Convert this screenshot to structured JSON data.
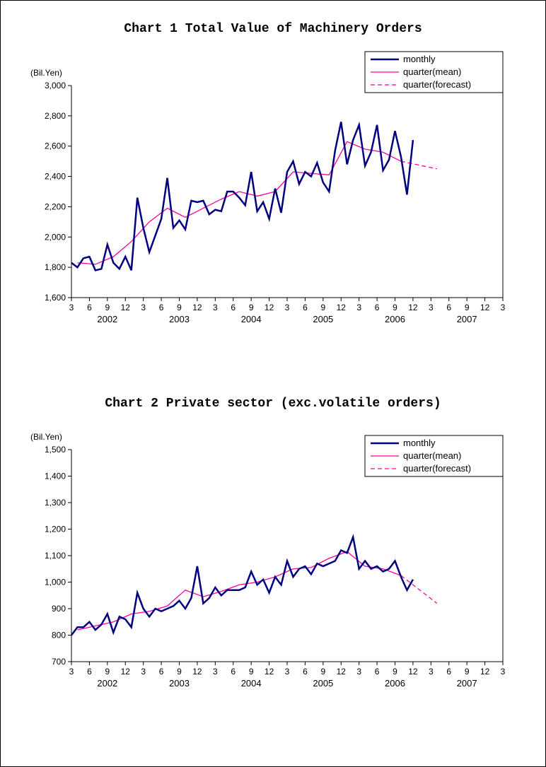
{
  "chart1": {
    "type": "line",
    "title": "Chart 1 Total Value of Machinery Orders",
    "yaxis_label": "(Bil.Yen)",
    "title_fontsize": 18,
    "label_fontsize": 12,
    "background_color": "#ffffff",
    "plot_border_color": "#000000",
    "grid_color": "#000000",
    "ylim": [
      1600,
      3000
    ],
    "yticks": [
      1600,
      1800,
      2000,
      2200,
      2400,
      2600,
      2800,
      3000
    ],
    "xticks_months": [
      "3",
      "6",
      "9",
      "12",
      "3",
      "6",
      "9",
      "12",
      "3",
      "6",
      "9",
      "12",
      "3",
      "6",
      "9",
      "12",
      "3",
      "6",
      "9",
      "12",
      "3",
      "6",
      "9",
      "12",
      "3"
    ],
    "xticks_years": [
      "2002",
      "2003",
      "2004",
      "2005",
      "2006",
      "2007"
    ],
    "series": {
      "monthly": {
        "label": "monthly",
        "color": "#000080",
        "line_width": 2.5,
        "dash": "none",
        "values": [
          1830,
          1800,
          1860,
          1870,
          1780,
          1790,
          1950,
          1830,
          1790,
          1870,
          1780,
          2260,
          2060,
          1900,
          2010,
          2120,
          2390,
          2060,
          2110,
          2050,
          2240,
          2230,
          2240,
          2150,
          2180,
          2170,
          2300,
          2300,
          2260,
          2210,
          2430,
          2170,
          2230,
          2120,
          2320,
          2160,
          2430,
          2500,
          2350,
          2430,
          2400,
          2490,
          2360,
          2300,
          2570,
          2760,
          2480,
          2640,
          2740,
          2470,
          2560,
          2740,
          2440,
          2510,
          2700,
          2530,
          2280,
          2640
        ]
      },
      "quarter_mean": {
        "label": "quarter(mean)",
        "color": "#ff00a0",
        "line_width": 1.3,
        "dash": "none",
        "values": [
          null,
          1830,
          null,
          null,
          1820,
          null,
          null,
          1870,
          null,
          null,
          1970,
          null,
          null,
          2100,
          null,
          null,
          2190,
          null,
          null,
          2130,
          null,
          null,
          2190,
          null,
          null,
          2250,
          null,
          null,
          2300,
          null,
          null,
          2270,
          null,
          null,
          2300,
          null,
          null,
          2430,
          null,
          null,
          2420,
          null,
          null,
          2410,
          null,
          null,
          2630,
          null,
          null,
          2580,
          null,
          null,
          2560,
          null,
          null,
          2500,
          null,
          null
        ]
      },
      "quarter_forecast": {
        "label": "quarter(forecast)",
        "color": "#ff00a0",
        "line_width": 1.3,
        "dash": "6,4",
        "values": [
          null,
          null,
          null,
          null,
          null,
          null,
          null,
          null,
          null,
          null,
          null,
          null,
          null,
          null,
          null,
          null,
          null,
          null,
          null,
          null,
          null,
          null,
          null,
          null,
          null,
          null,
          null,
          null,
          null,
          null,
          null,
          null,
          null,
          null,
          null,
          null,
          null,
          null,
          null,
          null,
          null,
          null,
          null,
          null,
          null,
          null,
          null,
          null,
          null,
          null,
          null,
          null,
          null,
          null,
          null,
          2500,
          null,
          null,
          2450
        ]
      }
    }
  },
  "chart2": {
    "type": "line",
    "title": "Chart 2 Private sector (exc.volatile orders)",
    "yaxis_label": "(Bil.Yen)",
    "title_fontsize": 18,
    "label_fontsize": 12,
    "background_color": "#ffffff",
    "plot_border_color": "#000000",
    "grid_color": "#000000",
    "ylim": [
      700,
      1500
    ],
    "yticks": [
      700,
      800,
      900,
      1000,
      1100,
      1200,
      1300,
      1400,
      1500
    ],
    "xticks_months": [
      "3",
      "6",
      "9",
      "12",
      "3",
      "6",
      "9",
      "12",
      "3",
      "6",
      "9",
      "12",
      "3",
      "6",
      "9",
      "12",
      "3",
      "6",
      "9",
      "12",
      "3",
      "6",
      "9",
      "12",
      "3"
    ],
    "xticks_years": [
      "2002",
      "2003",
      "2004",
      "2005",
      "2006",
      "2007"
    ],
    "series": {
      "monthly": {
        "label": "monthly",
        "color": "#000080",
        "line_width": 2.5,
        "dash": "none",
        "values": [
          800,
          830,
          830,
          850,
          820,
          840,
          880,
          810,
          870,
          860,
          830,
          960,
          900,
          870,
          900,
          890,
          900,
          910,
          930,
          900,
          940,
          1060,
          920,
          940,
          980,
          950,
          970,
          970,
          970,
          980,
          1040,
          990,
          1010,
          960,
          1020,
          990,
          1080,
          1020,
          1050,
          1060,
          1030,
          1070,
          1060,
          1070,
          1080,
          1120,
          1110,
          1170,
          1050,
          1080,
          1050,
          1060,
          1040,
          1050,
          1080,
          1020,
          970,
          1010
        ]
      },
      "quarter_mean": {
        "label": "quarter(mean)",
        "color": "#ff00a0",
        "line_width": 1.3,
        "dash": "none",
        "values": [
          null,
          820,
          null,
          null,
          835,
          null,
          null,
          850,
          null,
          null,
          880,
          null,
          null,
          890,
          null,
          null,
          910,
          null,
          null,
          970,
          null,
          null,
          945,
          null,
          null,
          965,
          null,
          null,
          990,
          null,
          null,
          1000,
          null,
          null,
          1020,
          null,
          null,
          1050,
          null,
          null,
          1055,
          null,
          null,
          1090,
          null,
          null,
          1115,
          null,
          null,
          1060,
          null,
          null,
          1050,
          null,
          null,
          1025,
          null,
          null
        ]
      },
      "quarter_forecast": {
        "label": "quarter(forecast)",
        "color": "#ff00a0",
        "line_width": 1.3,
        "dash": "6,4",
        "values": [
          null,
          null,
          null,
          null,
          null,
          null,
          null,
          null,
          null,
          null,
          null,
          null,
          null,
          null,
          null,
          null,
          null,
          null,
          null,
          null,
          null,
          null,
          null,
          null,
          null,
          null,
          null,
          null,
          null,
          null,
          null,
          null,
          null,
          null,
          null,
          null,
          null,
          null,
          null,
          null,
          null,
          null,
          null,
          null,
          null,
          null,
          null,
          null,
          null,
          null,
          null,
          null,
          null,
          null,
          null,
          1025,
          null,
          null,
          920
        ]
      }
    }
  }
}
